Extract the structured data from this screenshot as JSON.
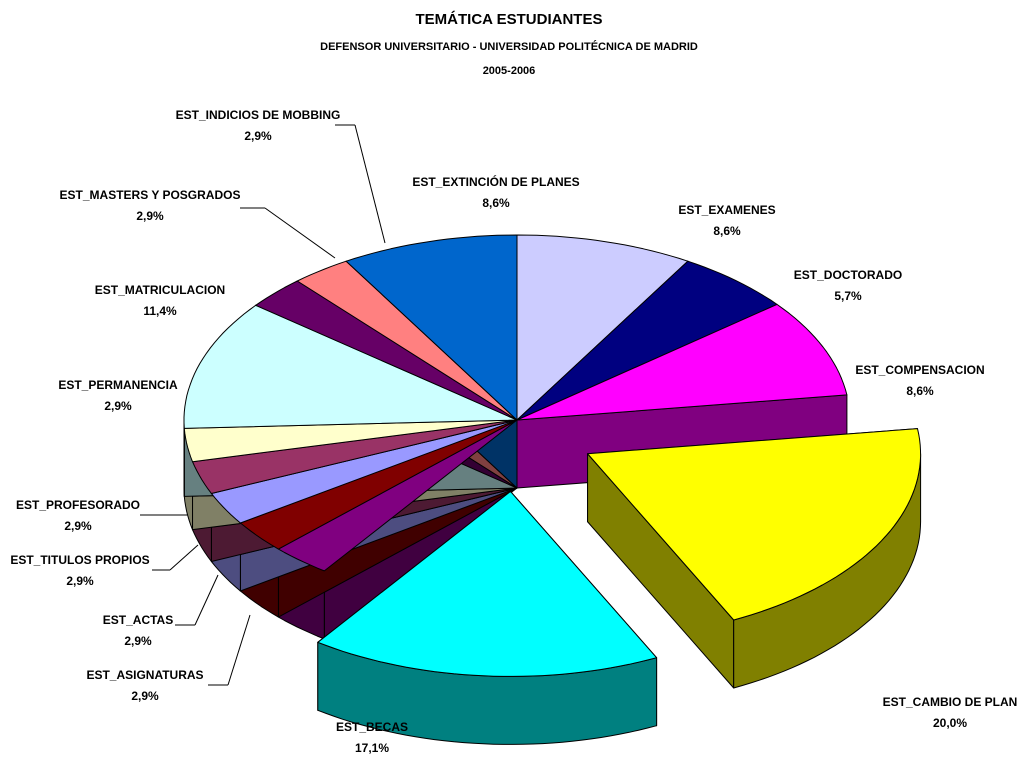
{
  "chart_data": {
    "type": "pie",
    "title": "TEMÁTICA ESTUDIANTES",
    "subtitle": "DEFENSOR UNIVERSITARIO - UNIVERSIDAD POLITÉCNICA DE MADRID",
    "period": "2005-2006",
    "categories": [
      "EST_EXAMENES",
      "EST_DOCTORADO",
      "EST_COMPENSACION",
      "EST_CAMBIO DE PLAN",
      "EST_BECAS",
      "EST_ASIGNATURAS",
      "EST_ACTAS",
      "EST_TITULOS PROPIOS",
      "EST_PROFESORADO",
      "EST_PERMANENCIA",
      "EST_MATRICULACION",
      "EST_MASTERS Y POSGRADOS",
      "EST_INDICIOS DE MOBBING",
      "EST_EXTINCIÓN DE PLANES"
    ],
    "values": [
      8.6,
      5.7,
      8.6,
      20.0,
      17.1,
      2.9,
      2.9,
      2.9,
      2.9,
      2.9,
      11.4,
      2.9,
      2.9,
      8.6
    ],
    "value_labels": [
      "8,6%",
      "5,7%",
      "8,6%",
      "20,0%",
      "17,1%",
      "2,9%",
      "2,9%",
      "2,9%",
      "2,9%",
      "2,9%",
      "11,4%",
      "2,9%",
      "2,9%",
      "8,6%"
    ],
    "colors": [
      "#ccccff",
      "#000080",
      "#ff00ff",
      "#ffff00",
      "#00ffff",
      "#800080",
      "#800000",
      "#9999ff",
      "#993366",
      "#ffffcc",
      "#ccffff",
      "#660066",
      "#ff8080",
      "#0066cc"
    ],
    "exploded": [
      false,
      false,
      false,
      true,
      true,
      false,
      false,
      false,
      false,
      false,
      false,
      false,
      false,
      false
    ]
  }
}
